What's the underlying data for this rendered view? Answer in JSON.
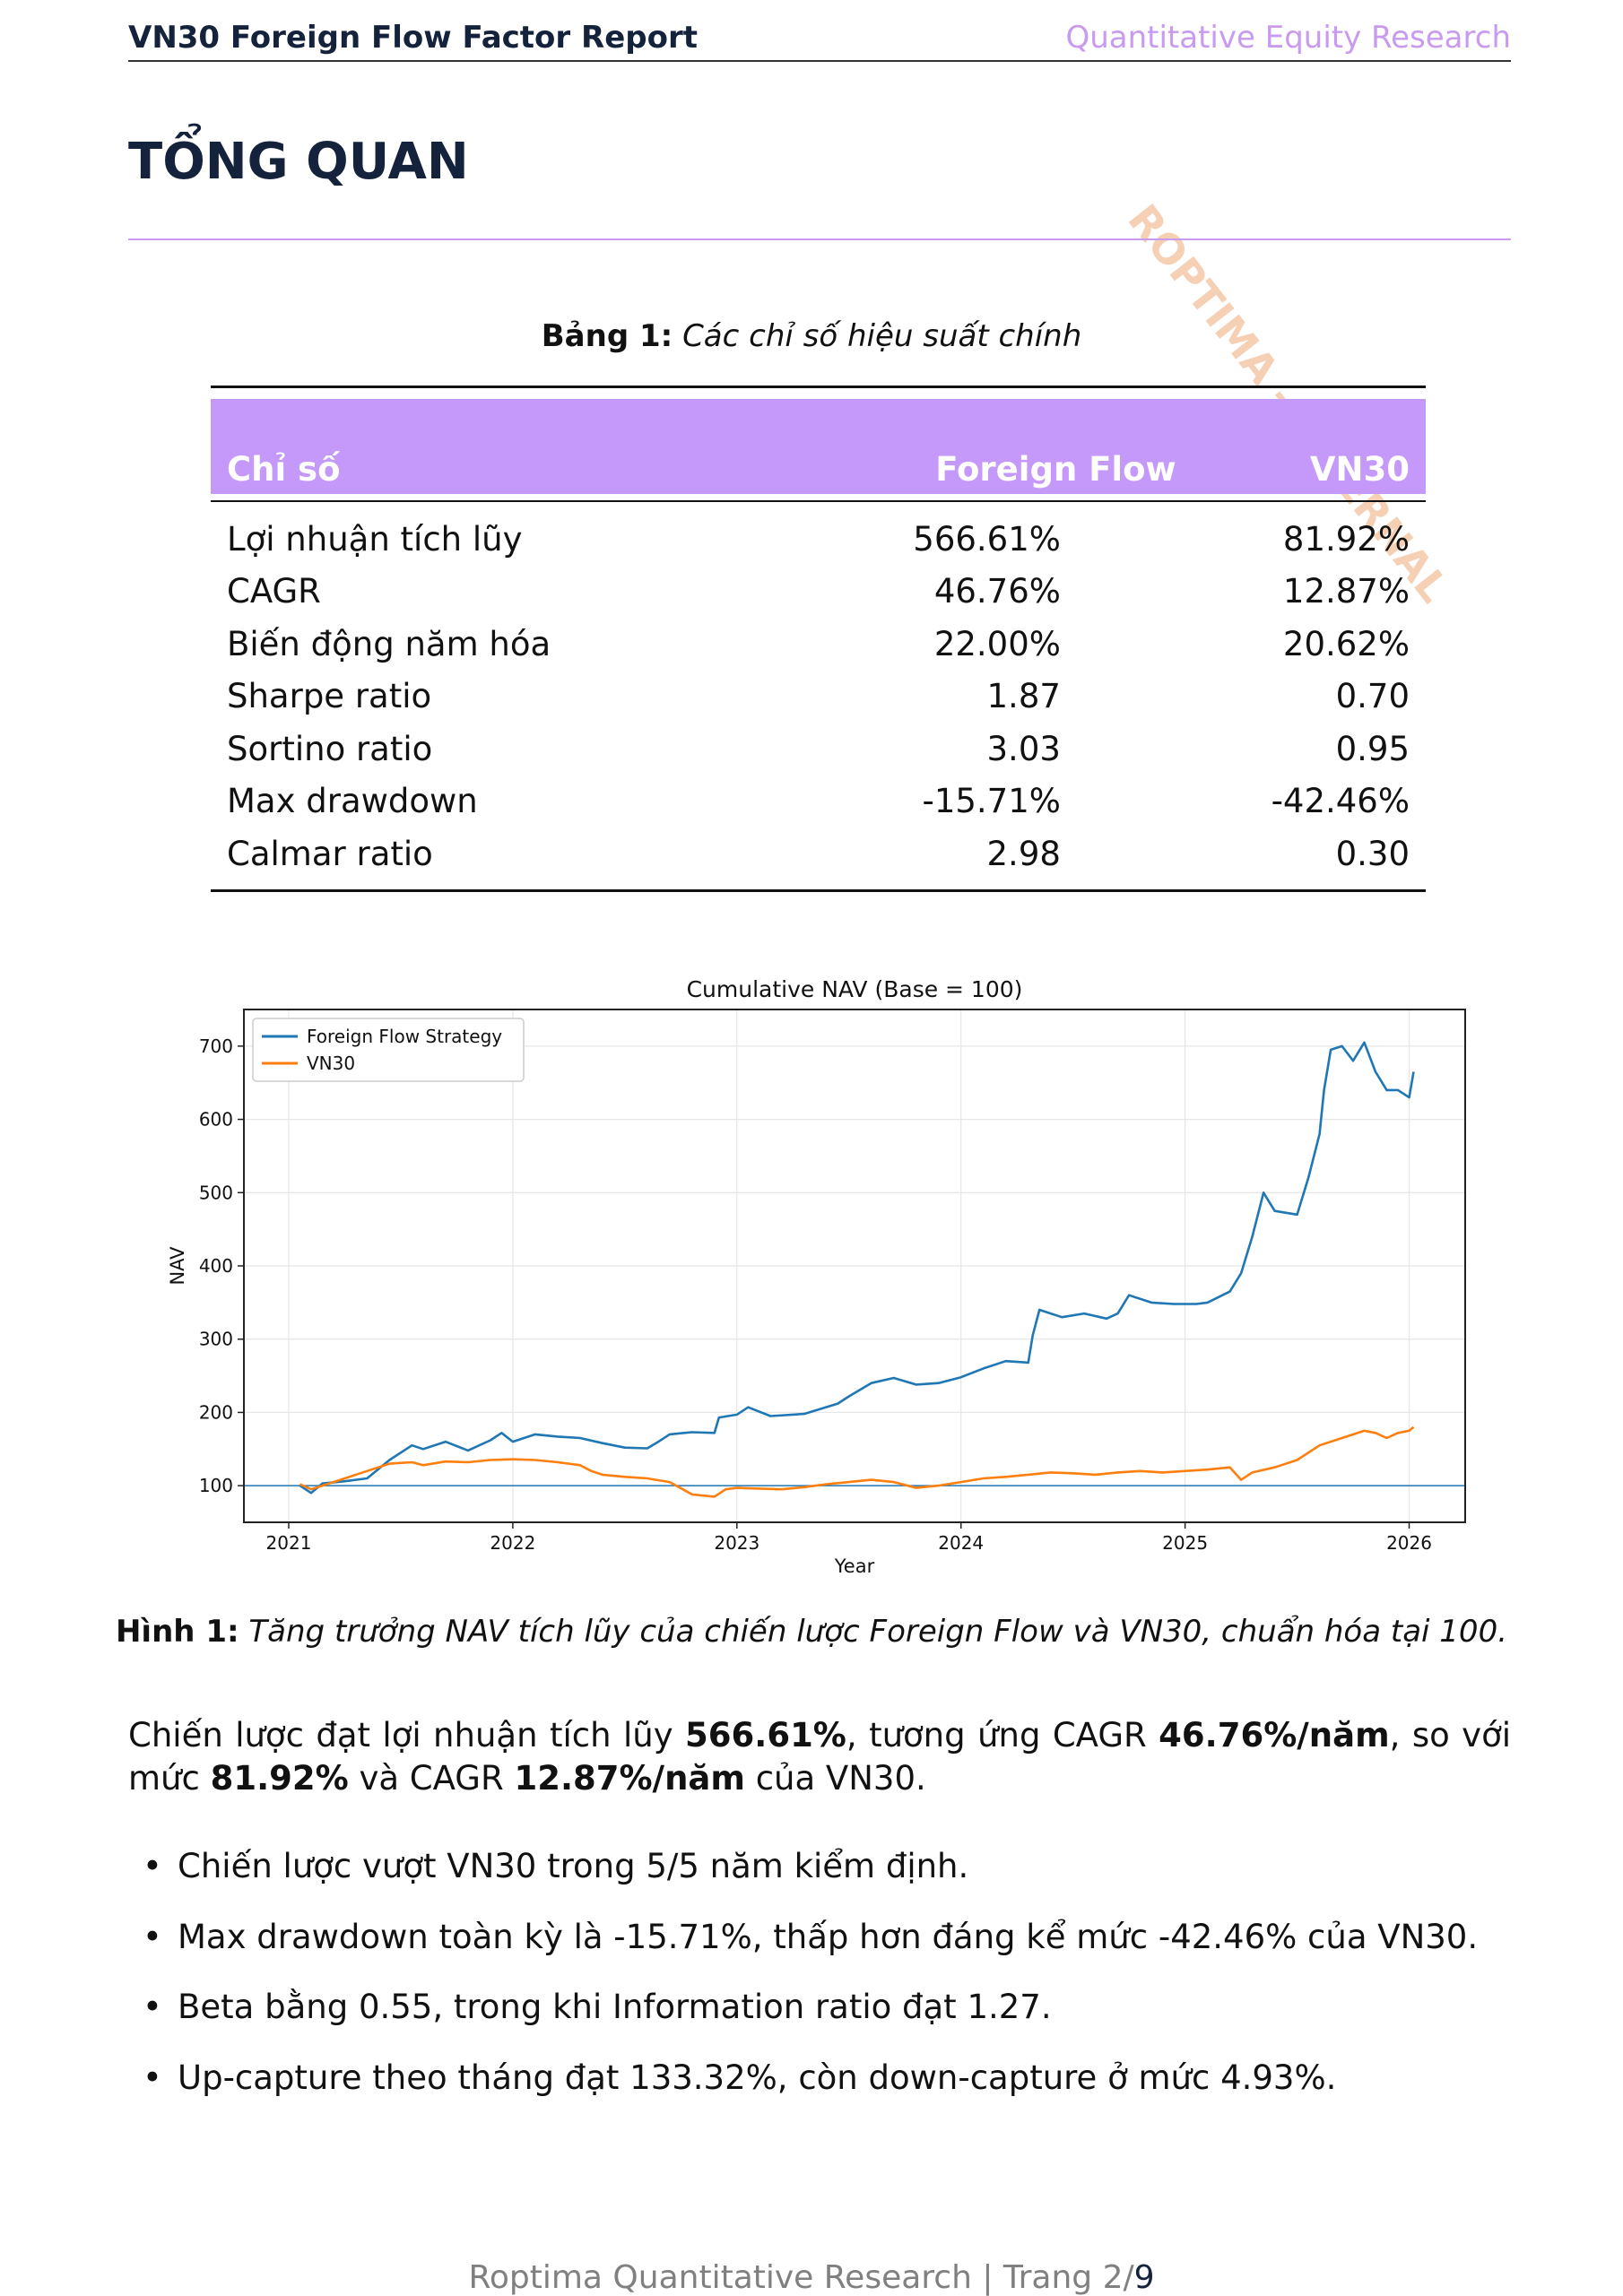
{
  "header": {
    "title": "VN30 Foreign Flow Factor Report",
    "subtitle": "Quantitative Equity Research"
  },
  "watermark": "ROPTIMA - INTERNAL",
  "section_title": "TỔNG QUAN",
  "table": {
    "caption_label": "Bảng 1:",
    "caption_text": "Các chỉ số hiệu suất chính",
    "headers": [
      "Chỉ số",
      "Foreign Flow",
      "VN30"
    ],
    "rows": [
      [
        "Lợi nhuận tích lũy",
        "566.61%",
        "81.92%"
      ],
      [
        "CAGR",
        "46.76%",
        "12.87%"
      ],
      [
        "Biến động năm hóa",
        "22.00%",
        "20.62%"
      ],
      [
        "Sharpe ratio",
        "1.87",
        "0.70"
      ],
      [
        "Sortino ratio",
        "3.03",
        "0.95"
      ],
      [
        "Max drawdown",
        "-15.71%",
        "-42.46%"
      ],
      [
        "Calmar ratio",
        "2.98",
        "0.30"
      ]
    ],
    "header_color": "#c499f9"
  },
  "chart_data": {
    "type": "line",
    "title": "Cumulative NAV (Base = 100)",
    "xlabel": "Year",
    "ylabel": "NAV",
    "xlim": [
      2020.8,
      2026.25
    ],
    "ylim": [
      50,
      750
    ],
    "x_ticks": [
      2021,
      2022,
      2023,
      2024,
      2025,
      2026
    ],
    "y_ticks": [
      100,
      200,
      300,
      400,
      500,
      600,
      700
    ],
    "grid": true,
    "legend": "top-left",
    "reference_line": 100,
    "series": [
      {
        "name": "Foreign Flow Strategy",
        "color": "#1f77b4",
        "points": [
          [
            2021.05,
            100
          ],
          [
            2021.1,
            90
          ],
          [
            2021.15,
            103
          ],
          [
            2021.25,
            106
          ],
          [
            2021.35,
            110
          ],
          [
            2021.45,
            135
          ],
          [
            2021.55,
            155
          ],
          [
            2021.6,
            150
          ],
          [
            2021.7,
            160
          ],
          [
            2021.8,
            148
          ],
          [
            2021.9,
            162
          ],
          [
            2021.95,
            172
          ],
          [
            2022.0,
            160
          ],
          [
            2022.1,
            170
          ],
          [
            2022.2,
            167
          ],
          [
            2022.3,
            165
          ],
          [
            2022.4,
            158
          ],
          [
            2022.5,
            152
          ],
          [
            2022.6,
            151
          ],
          [
            2022.65,
            160
          ],
          [
            2022.7,
            170
          ],
          [
            2022.8,
            173
          ],
          [
            2022.9,
            172
          ],
          [
            2022.92,
            193
          ],
          [
            2023.0,
            197
          ],
          [
            2023.05,
            207
          ],
          [
            2023.15,
            195
          ],
          [
            2023.3,
            198
          ],
          [
            2023.45,
            212
          ],
          [
            2023.5,
            222
          ],
          [
            2023.6,
            240
          ],
          [
            2023.7,
            247
          ],
          [
            2023.8,
            238
          ],
          [
            2023.9,
            240
          ],
          [
            2024.0,
            248
          ],
          [
            2024.1,
            260
          ],
          [
            2024.2,
            270
          ],
          [
            2024.3,
            268
          ],
          [
            2024.32,
            305
          ],
          [
            2024.35,
            340
          ],
          [
            2024.45,
            330
          ],
          [
            2024.55,
            335
          ],
          [
            2024.65,
            328
          ],
          [
            2024.7,
            335
          ],
          [
            2024.75,
            360
          ],
          [
            2024.85,
            350
          ],
          [
            2024.95,
            348
          ],
          [
            2025.05,
            348
          ],
          [
            2025.1,
            350
          ],
          [
            2025.2,
            365
          ],
          [
            2025.25,
            390
          ],
          [
            2025.3,
            440
          ],
          [
            2025.35,
            500
          ],
          [
            2025.4,
            475
          ],
          [
            2025.5,
            470
          ],
          [
            2025.55,
            520
          ],
          [
            2025.6,
            580
          ],
          [
            2025.62,
            640
          ],
          [
            2025.65,
            695
          ],
          [
            2025.7,
            700
          ],
          [
            2025.75,
            680
          ],
          [
            2025.8,
            705
          ],
          [
            2025.85,
            665
          ],
          [
            2025.9,
            640
          ],
          [
            2025.95,
            640
          ],
          [
            2026.0,
            630
          ],
          [
            2026.02,
            665
          ]
        ]
      },
      {
        "name": "VN30",
        "color": "#ff7f0e",
        "points": [
          [
            2021.05,
            102
          ],
          [
            2021.1,
            95
          ],
          [
            2021.15,
            100
          ],
          [
            2021.25,
            110
          ],
          [
            2021.35,
            120
          ],
          [
            2021.45,
            130
          ],
          [
            2021.55,
            132
          ],
          [
            2021.6,
            128
          ],
          [
            2021.7,
            133
          ],
          [
            2021.8,
            132
          ],
          [
            2021.9,
            135
          ],
          [
            2022.0,
            136
          ],
          [
            2022.1,
            135
          ],
          [
            2022.2,
            132
          ],
          [
            2022.3,
            128
          ],
          [
            2022.35,
            120
          ],
          [
            2022.4,
            115
          ],
          [
            2022.5,
            112
          ],
          [
            2022.6,
            110
          ],
          [
            2022.7,
            105
          ],
          [
            2022.8,
            88
          ],
          [
            2022.9,
            85
          ],
          [
            2022.95,
            95
          ],
          [
            2023.0,
            97
          ],
          [
            2023.1,
            96
          ],
          [
            2023.2,
            95
          ],
          [
            2023.3,
            98
          ],
          [
            2023.4,
            102
          ],
          [
            2023.5,
            105
          ],
          [
            2023.6,
            108
          ],
          [
            2023.7,
            105
          ],
          [
            2023.8,
            97
          ],
          [
            2023.9,
            100
          ],
          [
            2024.0,
            105
          ],
          [
            2024.1,
            110
          ],
          [
            2024.2,
            112
          ],
          [
            2024.3,
            115
          ],
          [
            2024.4,
            118
          ],
          [
            2024.5,
            117
          ],
          [
            2024.6,
            115
          ],
          [
            2024.7,
            118
          ],
          [
            2024.8,
            120
          ],
          [
            2024.9,
            118
          ],
          [
            2025.0,
            120
          ],
          [
            2025.1,
            122
          ],
          [
            2025.2,
            125
          ],
          [
            2025.25,
            108
          ],
          [
            2025.3,
            118
          ],
          [
            2025.4,
            125
          ],
          [
            2025.5,
            135
          ],
          [
            2025.6,
            155
          ],
          [
            2025.7,
            165
          ],
          [
            2025.8,
            175
          ],
          [
            2025.85,
            172
          ],
          [
            2025.9,
            165
          ],
          [
            2025.95,
            172
          ],
          [
            2026.0,
            175
          ],
          [
            2026.02,
            180
          ]
        ]
      }
    ]
  },
  "figure": {
    "caption_label": "Hình 1:",
    "caption_text": "Tăng trưởng NAV tích lũy của chiến lược Foreign Flow và VN30, chuẩn hóa tại 100."
  },
  "paragraph": {
    "p1": "Chiến lược đạt lợi nhuận tích lũy ",
    "b1": "566.61%",
    "p2": ", tương ứng CAGR ",
    "b2": "46.76%/năm",
    "p3": ", so với mức ",
    "b3": "81.92%",
    "p4": " và CAGR ",
    "b4": "12.87%/năm",
    "p5": " của VN30."
  },
  "bullets": [
    "Chiến lược vượt VN30 trong 5/5 năm kiểm định.",
    "Max drawdown toàn kỳ là -15.71%, thấp hơn đáng kể mức -42.46% của VN30.",
    "Beta bằng 0.55, trong khi Information ratio đạt 1.27.",
    "Up-capture theo tháng đạt 133.32%, còn down-capture ở mức 4.93%."
  ],
  "bullet_glyph": "•",
  "footer": {
    "prefix": "Roptima Quantitative Research | Trang 2/",
    "total": "9"
  }
}
